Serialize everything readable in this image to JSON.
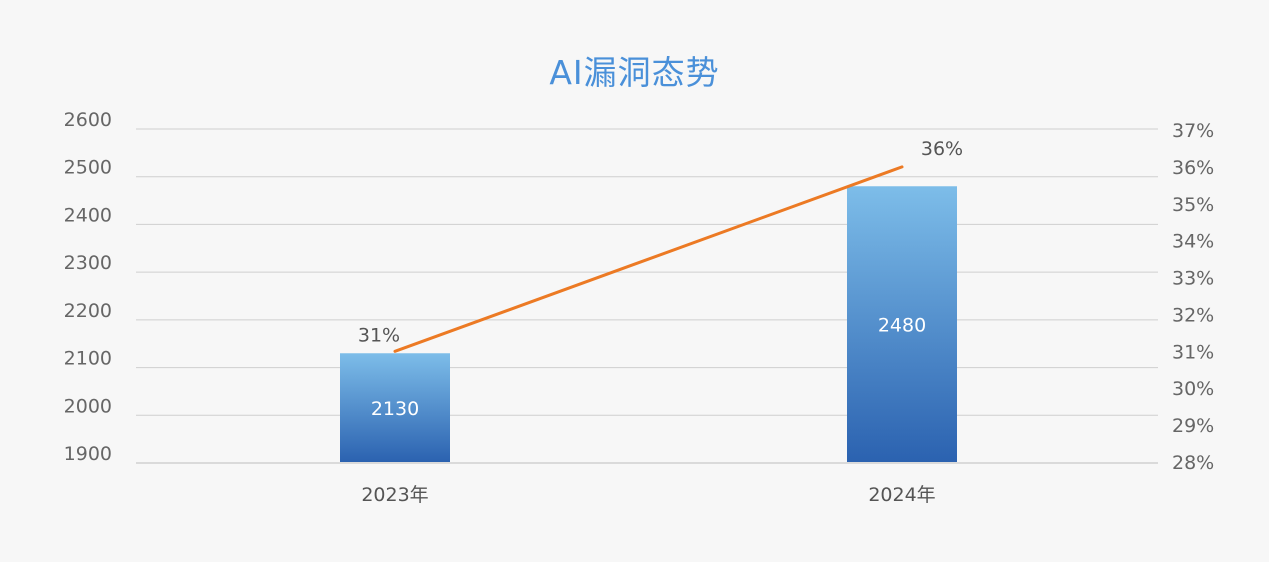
{
  "chart_data": {
    "type": "bar",
    "title": "AI漏洞态势",
    "categories": [
      "2023年",
      "2024年"
    ],
    "series": [
      {
        "type": "bar",
        "axis": "left",
        "values": [
          2130,
          2480
        ],
        "color": "#3a78c4"
      },
      {
        "type": "line",
        "axis": "right",
        "values": [
          31,
          36
        ],
        "value_labels": [
          "31%",
          "36%"
        ],
        "color": "#ec7a24"
      }
    ],
    "y_left": {
      "min": 1900,
      "max": 2600,
      "ticks": [
        "1900",
        "2000",
        "2100",
        "2200",
        "2300",
        "2400",
        "2500",
        "2600"
      ]
    },
    "y_right": {
      "min": 28,
      "max": 37,
      "ticks": [
        "28%",
        "29%",
        "30%",
        "31%",
        "32%",
        "33%",
        "34%",
        "35%",
        "36%",
        "37%"
      ]
    },
    "grid": true,
    "legend": "none"
  }
}
